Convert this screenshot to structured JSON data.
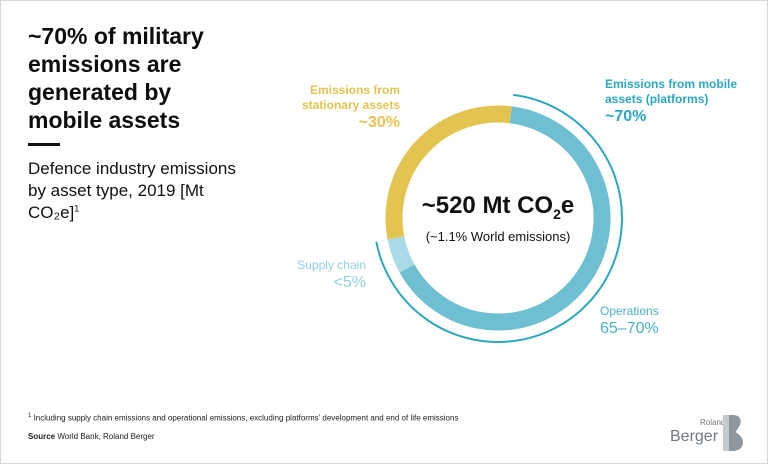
{
  "headline": "~70% of military emissions are generated by mobile assets",
  "subtitle": {
    "text": "Defence industry emissions by asset type, 2019 [Mt CO₂e]",
    "footnote_marker": "1"
  },
  "chart_data": {
    "type": "pie",
    "subtype": "donut",
    "center": {
      "value_prefix": "~520 Mt CO",
      "value_sub": "2",
      "value_suffix": "e",
      "note": "(~1.1% World emissions)"
    },
    "segments": [
      {
        "id": "mobile",
        "label": "Emissions from mobile assets (platforms)",
        "label_lines": [
          "Emissions from mobile",
          "assets (platforms)"
        ],
        "value_label": "~70%",
        "value": 70,
        "color": "#2ba8bf"
      },
      {
        "id": "stationary",
        "label": "Emissions from stationary assets",
        "label_lines": [
          "Emissions from",
          "stationary assets"
        ],
        "value_label": "~30%",
        "value": 30,
        "color": "#e3c451"
      }
    ],
    "inner_segments": [
      {
        "id": "operations",
        "label": "Operations",
        "value_label": "65–70%",
        "value": 65,
        "color": "#6fbfd3"
      },
      {
        "id": "supply",
        "label": "Supply chain",
        "value_label": "<5%",
        "value": 5,
        "color": "#a8dbe5"
      }
    ]
  },
  "footnote": {
    "marker": "1",
    "text": "Including supply chain emissions and operational emissions, excluding platforms' development and end of life emissions"
  },
  "source": {
    "label": "Source",
    "text": "World Bank, Roland Berger"
  },
  "logo": {
    "small": "Roland",
    "main": "Berger",
    "color": "#6f7880"
  }
}
